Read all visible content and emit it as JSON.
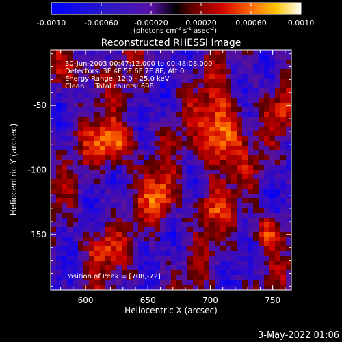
{
  "title": "Reconstructed RHESSI Image",
  "colorbar": {
    "ticks": [
      "-0.0010",
      "-0.00060",
      "-0.00020",
      "0.00020",
      "0.00060",
      "0.0010"
    ],
    "range": [
      -0.001,
      0.001
    ],
    "unit_parts": {
      "prefix": "(photons cm",
      "sup1": "-2",
      "mid1": " s",
      "sup2": "-1",
      "mid2": " asec",
      "sup3": "-2",
      "suffix": ")"
    }
  },
  "info": {
    "line1": "30-Jun-2003 00:47:12.000 to 00:48:08.000",
    "line2": "Detectors: 3F 4F 5F 6F 7F 8F, Att 0",
    "line3": "Energy Range: 12.0 - 25.0 keV",
    "line4": "Clean     Total counts: 698."
  },
  "peak_text": "Position of Peak = [708,-72]",
  "axes": {
    "xlabel": "Heliocentric X (arcsec)",
    "ylabel": "Heliocentric Y (arcsec)",
    "xticks": [
      "600",
      "650",
      "700",
      "750"
    ],
    "yticks": [
      "-50",
      "-100",
      "-150"
    ],
    "xlim": [
      572,
      765
    ],
    "ylim": [
      -193,
      -7
    ]
  },
  "footer": {
    "date": "3-May-2022 01:06"
  },
  "colors": {
    "background": "#000000",
    "foreground": "#ffffff"
  }
}
